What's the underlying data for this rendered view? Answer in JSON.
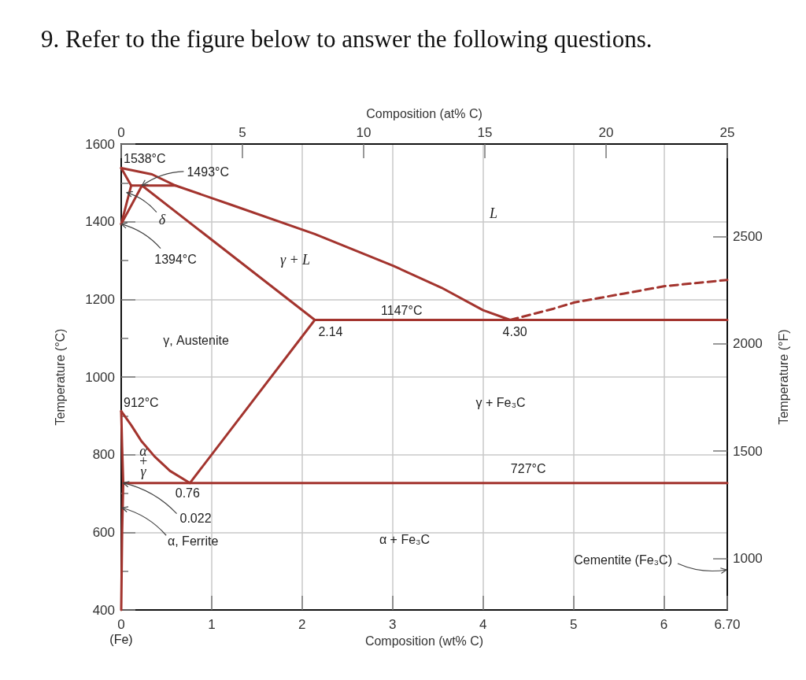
{
  "chart_data": {
    "type": "line",
    "title": "9. Refer to the figure below to answer the following questions.",
    "xlabel": "Composition (wt% C)",
    "ylabel": "Temperature (°C)",
    "x2label": "Composition (at% C)",
    "y2label": "Temperature (°F)",
    "xlim": [
      0,
      6.7
    ],
    "xticks": [
      0,
      1,
      2,
      3,
      4,
      5,
      6,
      {
        "value": 6.7,
        "label": "6.70"
      }
    ],
    "ylim": [
      400,
      1600
    ],
    "yticks": [
      400,
      {
        "value": 500,
        "label": null
      },
      600,
      {
        "value": 700,
        "label": null
      },
      800,
      {
        "value": 900,
        "label": null
      },
      1000,
      {
        "value": 1100,
        "label": null
      },
      1200,
      {
        "value": 1300,
        "label": null
      },
      1400,
      {
        "value": 1500,
        "label": null
      },
      1600
    ],
    "x2lim": [
      0,
      25
    ],
    "x2ticks": [
      0,
      5,
      10,
      15,
      20,
      25
    ],
    "y2lim": [
      760,
      2930
    ],
    "y2ticks": [
      1000,
      1500,
      2000,
      2500
    ],
    "grid": true,
    "marker": "none",
    "series": [
      {
        "color": "#a3342e",
        "x": [
          0,
          0.34,
          0.6,
          1.21,
          2.14,
          3.01,
          3.54,
          4.0,
          4.3
        ],
        "values": [
          1538,
          1522,
          1493,
          1444,
          1368,
          1286,
          1230,
          1172,
          1147
        ]
      },
      {
        "color": "#a3342e",
        "x": [
          0,
          0.11
        ],
        "values": [
          1538,
          1493
        ]
      },
      {
        "color": "#a3342e",
        "x": [
          0.11,
          0.6
        ],
        "values": [
          1493,
          1493
        ]
      },
      {
        "color": "#a3342e",
        "x": [
          0,
          0.11
        ],
        "values": [
          1394,
          1493
        ]
      },
      {
        "color": "#a3342e",
        "x": [
          0,
          0.23
        ],
        "values": [
          1394,
          1493
        ]
      },
      {
        "color": "#a3342e",
        "x": [
          0.23,
          2.14
        ],
        "values": [
          1493,
          1147
        ]
      },
      {
        "color": "#a3342e",
        "x": [
          2.14,
          6.7
        ],
        "values": [
          1147,
          1147
        ]
      },
      {
        "color": "#a3342e",
        "line_style": "dashed",
        "x": [
          4.3,
          4.78,
          5.01,
          5.56,
          6.01,
          6.7
        ],
        "values": [
          1147,
          1176,
          1192,
          1215,
          1234,
          1250
        ]
      },
      {
        "color": "#a3342e",
        "x": [
          0.76,
          2.14
        ],
        "values": [
          727,
          1147
        ]
      },
      {
        "color": "#a3342e",
        "x": [
          0,
          0.11,
          0.22,
          0.37,
          0.54,
          0.76
        ],
        "values": [
          912,
          876,
          836,
          795,
          758,
          727
        ]
      },
      {
        "color": "#a3342e",
        "x": [
          0,
          0.01,
          0.022,
          0.01,
          0
        ],
        "values": [
          912,
          820,
          727,
          600,
          400
        ]
      },
      {
        "color": "#a3342e",
        "x": [
          0.022,
          6.7
        ],
        "values": [
          727,
          727
        ]
      }
    ],
    "annotations": [
      {
        "text": "1538°C",
        "x": 0,
        "y": 1538
      },
      {
        "text": "1493°C",
        "x": 0.23,
        "y": 1493
      },
      {
        "text": "δ",
        "x": 0.06,
        "y": 1475
      },
      {
        "text": "1394°C",
        "x": 0,
        "y": 1394
      },
      "γ + L",
      "L",
      {
        "text": "1147°C",
        "x": 3.1,
        "y": 1147
      },
      {
        "text": "2.14",
        "x": 2.14,
        "y": 1147
      },
      {
        "text": "4.30",
        "x": 4.3,
        "y": 1147
      },
      "γ, Austenite",
      {
        "text": "912°C",
        "x": 0,
        "y": 912
      },
      "α + γ",
      {
        "text": "0.76",
        "x": 0.76,
        "y": 727
      },
      {
        "text": "0.022",
        "x": 0.022,
        "y": 727
      },
      {
        "text": "α, Ferrite",
        "x": 0.01,
        "y": 663
      },
      "γ + Fe₃C",
      {
        "text": "727°C",
        "x": 4.5,
        "y": 727
      },
      "α + Fe₃C",
      "Cementite (Fe₃C)",
      "(Fe)"
    ]
  }
}
